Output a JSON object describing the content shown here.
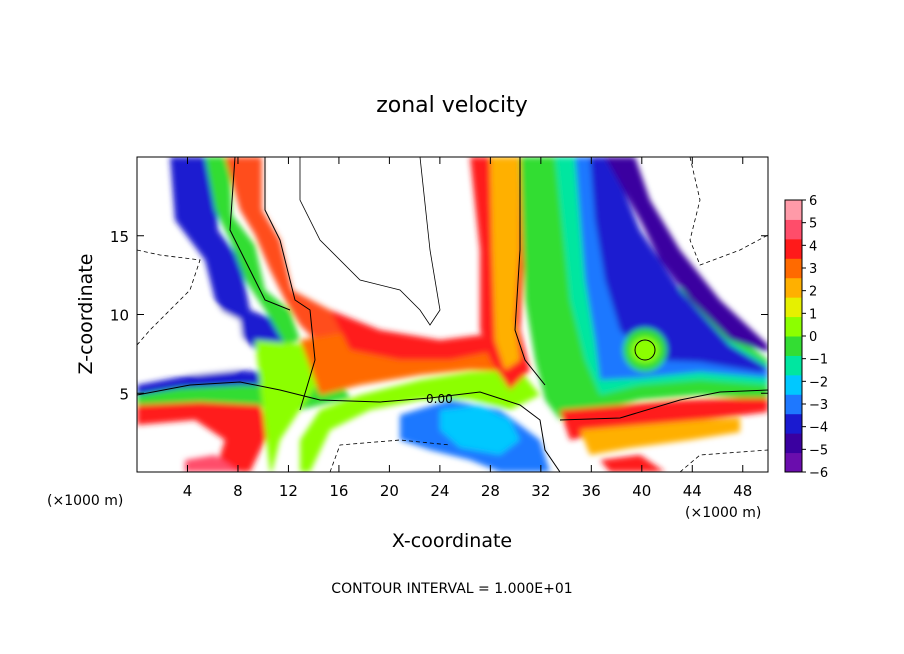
{
  "chart_data": {
    "type": "heatmap",
    "title": "zonal velocity",
    "xlabel": "X-coordinate",
    "ylabel": "Z-coordinate",
    "x_unit_label": "(×1000 m)",
    "x_ticks": [
      4,
      8,
      12,
      16,
      20,
      24,
      28,
      32,
      36,
      40,
      44,
      48
    ],
    "y_ticks": [
      5,
      10,
      15
    ],
    "xlim": [
      0,
      50
    ],
    "ylim": [
      0,
      20
    ],
    "colorbar": {
      "ticks": [
        6,
        5,
        4,
        3,
        2,
        1,
        0,
        -1,
        -2,
        -3,
        -4,
        -5,
        -6
      ],
      "colors": [
        "#6a0dad",
        "#3a00a0",
        "#1a1ad0",
        "#1e78ff",
        "#00c8ff",
        "#00e6a0",
        "#33dd33",
        "#8cff00",
        "#e6f000",
        "#ffb000",
        "#ff6a00",
        "#ff1a1a",
        "#ff4d6a",
        "#ff9aa8"
      ]
    },
    "contour_label": "0.00",
    "footnote": "CONTOUR INTERVAL = 1.000E+01"
  }
}
